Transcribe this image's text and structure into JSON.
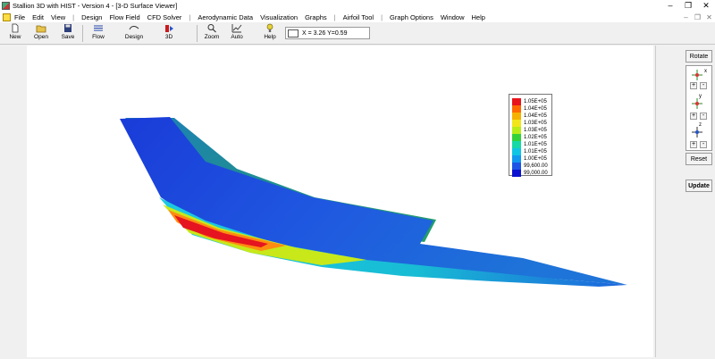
{
  "window": {
    "title": "Stallion 3D with HIST - Version 4 - [3-D Surface Viewer]"
  },
  "menu": [
    "File",
    "Edit",
    "View",
    "Design",
    "Flow Field",
    "CFD Solver",
    "Aerodynamic Data",
    "Visualization",
    "Graphs",
    "Airfoil Tool",
    "Graph Options",
    "Window",
    "Help"
  ],
  "toolbar": {
    "new": "New",
    "open": "Open",
    "save": "Save",
    "flow": "Flow",
    "design": "Design",
    "threed": "3D",
    "zoom": "Zoom",
    "auto": "Auto",
    "help": "Help",
    "coords": "X = 3.26  Y=0.59"
  },
  "panel": {
    "rotate": "Rotate",
    "plus": "+",
    "minus": "-",
    "axis_x": "x",
    "axis_y": "y",
    "axis_z": "z",
    "reset": "Reset",
    "update": "Update"
  },
  "legend": {
    "labels": [
      "1.05E+05",
      "1.04E+05",
      "1.04E+05",
      "1.03E+05",
      "1.03E+05",
      "1.02E+05",
      "1.01E+05",
      "1.01E+05",
      "1.00E+05",
      "99,600.00",
      "99,000.00"
    ],
    "colors": [
      "#e8141c",
      "#ff6a00",
      "#f6b200",
      "#f2e51a",
      "#b8ec18",
      "#33d13a",
      "#16d9a6",
      "#10c5e3",
      "#1398f0",
      "#1e55e6",
      "#0b12cf"
    ]
  }
}
